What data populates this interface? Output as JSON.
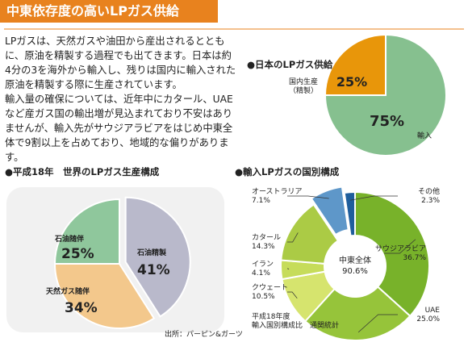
{
  "header": {
    "title": "中東依存度の高いLPガス供給"
  },
  "body": {
    "paragraphs": [
      "LPガスは、天然ガスや油田から産出されるとともに、原油を精製する過程でも出てきます。日本は約4分の3を海外から輸入し、残りは国内に輸入された原油を精製する際に生産されています。",
      "輸入量の確保については、近年中にカタール、UAEなど産ガス国の輸出増が見込まれており不安はありませんが、輸入先がサウジアラビアをはじめ中東全体で9割以上を占めており、地域的な偏りがあります。"
    ]
  },
  "chart_data": [
    {
      "type": "pie",
      "title": "●日本のLPガス供給",
      "categories": [
        "輸入",
        "国内生産\n（精製）"
      ],
      "values": [
        75,
        25
      ],
      "value_labels": [
        "75%",
        "25%"
      ],
      "colors": [
        "#86c08f",
        "#e8960a"
      ]
    },
    {
      "type": "pie",
      "title": "●平成18年　世界のLPガス生産構成",
      "categories": [
        "石油精製",
        "天然ガス随伴",
        "石油随伴"
      ],
      "values": [
        41,
        34,
        25
      ],
      "value_labels": [
        "41%",
        "34%",
        "25%"
      ],
      "colors": [
        "#b9b9cb",
        "#f3c88c",
        "#8fc79c"
      ],
      "source": "出所：パーピン&ガーツ"
    },
    {
      "type": "donut",
      "title": "●輸入LPガスの国別構成",
      "categories": [
        "サウジアラビア",
        "UAE",
        "クウェート",
        "イラン",
        "カタール",
        "オーストラリア",
        "その他"
      ],
      "values": [
        36.7,
        25.0,
        10.5,
        4.1,
        14.3,
        7.1,
        2.3
      ],
      "value_labels": [
        "36.7%",
        "25.0%",
        "10.5%",
        "4.1%",
        "14.3%",
        "7.1%",
        "2.3%"
      ],
      "colors": [
        "#78b22a",
        "#96c43a",
        "#d6e46e",
        "#c6dc5a",
        "#abcb45",
        "#5e97c9",
        "#1f5e9c"
      ],
      "center_title": "中東全体",
      "center_value": {
        "value": 90.6,
        "label": "90.6%"
      },
      "note": "平成18年度\n輸入国別構成比　通関統計"
    }
  ]
}
